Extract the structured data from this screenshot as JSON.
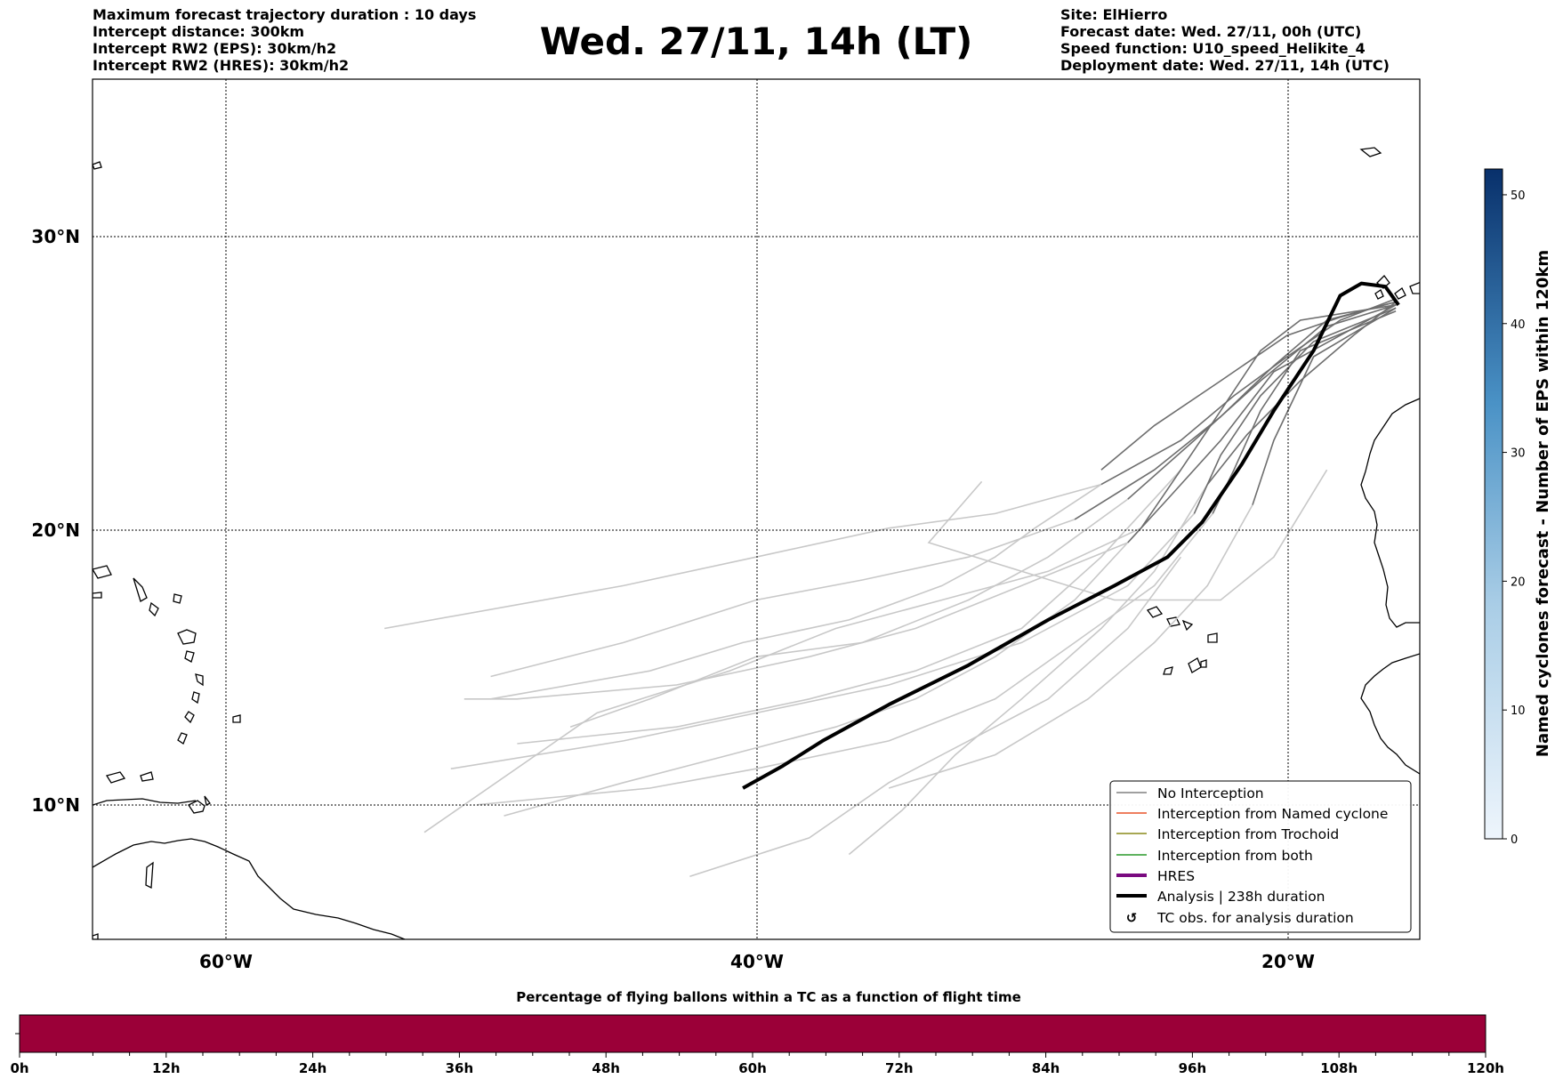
{
  "header": {
    "title": "Wed. 27/11, 14h (LT)",
    "left_lines": [
      "Maximum forecast trajectory duration : 10 days",
      "Intercept distance: 300km",
      "Intercept RW2 (EPS):  30km/h2",
      "Intercept RW2 (HRES): 30km/h2"
    ],
    "right_lines": [
      "Site: ElHierro",
      "Forecast date: Wed. 27/11, 00h (UTC)",
      "Speed function: U10_speed_Helikite_4",
      "Deployment date: Wed. 27/11, 14h (UTC)"
    ]
  },
  "map": {
    "lon_ticks": [
      "60°W",
      "40°W",
      "20°W"
    ],
    "lat_ticks": [
      "30°N",
      "20°N",
      "10°N"
    ],
    "lon_range": [
      -65,
      -15
    ],
    "lat_range": [
      5.3,
      34.6
    ],
    "grid": "dotted"
  },
  "legend": {
    "placement": "lower-right",
    "items": [
      {
        "label": "No Interception",
        "color": "#808080",
        "style": "thin"
      },
      {
        "label": "Interception from Named cyclone",
        "color": "#e8542a",
        "style": "thin"
      },
      {
        "label": "Interception from Trochoid",
        "color": "#8a8a1a",
        "style": "thin"
      },
      {
        "label": "Interception from both",
        "color": "#2a9a2a",
        "style": "thin"
      },
      {
        "label": "HRES",
        "color": "#7a0a80",
        "style": "thick"
      },
      {
        "label": "Analysis | 238h duration",
        "color": "#000000",
        "style": "thick"
      },
      {
        "label": "TC obs. for analysis duration",
        "color": "#000000",
        "style": "symbol"
      }
    ]
  },
  "colorbar": {
    "label": "Named cyclones forecast - Number of EPS within 120km",
    "ticks": [
      "0",
      "10",
      "20",
      "30",
      "40",
      "50"
    ],
    "range": [
      0,
      52
    ],
    "colors": [
      "#e8f1fb",
      "#08306b"
    ]
  },
  "timebar": {
    "title": "Percentage of flying ballons within a TC as a function of flight time",
    "ticks": [
      "0h",
      "12h",
      "24h",
      "36h",
      "48h",
      "60h",
      "72h",
      "84h",
      "96h",
      "108h",
      "120h"
    ],
    "fill_color": "#9b0038"
  },
  "chart_data": {
    "type": "line",
    "x_axis": "longitude",
    "y_axis": "latitude",
    "analysis_track": [
      [
        -15.8,
        27.5
      ],
      [
        -16.3,
        28.1
      ],
      [
        -17.2,
        28.2
      ],
      [
        -18.0,
        27.8
      ],
      [
        -19.0,
        26.0
      ],
      [
        -20.5,
        24.0
      ],
      [
        -21.7,
        22.2
      ],
      [
        -23.2,
        20.2
      ],
      [
        -24.5,
        19.0
      ],
      [
        -26.5,
        18.0
      ],
      [
        -29.0,
        16.8
      ],
      [
        -32.0,
        15.2
      ],
      [
        -35.0,
        13.8
      ],
      [
        -37.5,
        12.5
      ],
      [
        -39.0,
        11.6
      ],
      [
        -40.5,
        10.8
      ]
    ],
    "member_tracks_dark": [
      [
        [
          -15.9,
          27.7
        ],
        [
          -18.0,
          27.0
        ],
        [
          -20.0,
          25.8
        ],
        [
          -22.0,
          24.5
        ],
        [
          -24.0,
          23.0
        ],
        [
          -27.0,
          21.5
        ]
      ],
      [
        [
          -15.9,
          27.6
        ],
        [
          -18.5,
          27.0
        ],
        [
          -20.5,
          25.5
        ],
        [
          -22.5,
          23.8
        ],
        [
          -25.0,
          22.0
        ],
        [
          -28.0,
          20.3
        ]
      ],
      [
        [
          -15.9,
          27.5
        ],
        [
          -18.0,
          26.5
        ],
        [
          -20.5,
          25.3
        ],
        [
          -22.5,
          23.0
        ],
        [
          -24.5,
          21.0
        ],
        [
          -26.0,
          19.5
        ]
      ],
      [
        [
          -15.9,
          27.4
        ],
        [
          -19.0,
          26.3
        ],
        [
          -21.0,
          24.5
        ],
        [
          -22.5,
          22.5
        ],
        [
          -23.5,
          20.5
        ]
      ],
      [
        [
          -15.9,
          27.5
        ],
        [
          -18.5,
          26.8
        ],
        [
          -21.0,
          25.0
        ],
        [
          -23.5,
          23.0
        ],
        [
          -26.0,
          21.0
        ]
      ],
      [
        [
          -15.9,
          27.3
        ],
        [
          -19.5,
          26.0
        ],
        [
          -21.0,
          24.0
        ],
        [
          -22.0,
          22.0
        ],
        [
          -22.8,
          20.5
        ]
      ],
      [
        [
          -15.9,
          27.6
        ],
        [
          -18.0,
          27.1
        ],
        [
          -20.0,
          26.5
        ],
        [
          -22.5,
          25.0
        ],
        [
          -25.0,
          23.5
        ],
        [
          -27.0,
          22.0
        ]
      ],
      [
        [
          -15.9,
          27.4
        ],
        [
          -19.0,
          25.8
        ],
        [
          -20.5,
          23.0
        ],
        [
          -21.3,
          20.8
        ]
      ],
      [
        [
          -15.9,
          27.6
        ],
        [
          -17.5,
          26.5
        ],
        [
          -19.5,
          25.0
        ],
        [
          -21.5,
          23.2
        ],
        [
          -23.0,
          21.5
        ]
      ],
      [
        [
          -15.9,
          27.5
        ],
        [
          -19.5,
          27.0
        ],
        [
          -21.0,
          26.0
        ],
        [
          -22.5,
          24.0
        ],
        [
          -24.0,
          22.0
        ],
        [
          -25.5,
          20.0
        ]
      ]
    ],
    "member_tracks_light": [
      [
        [
          -27.0,
          21.5
        ],
        [
          -31.0,
          20.5
        ],
        [
          -35.0,
          20.0
        ],
        [
          -40.0,
          19.0
        ],
        [
          -45.0,
          18.0
        ],
        [
          -54.0,
          16.5
        ]
      ],
      [
        [
          -28.0,
          20.3
        ],
        [
          -32.0,
          19.0
        ],
        [
          -36.0,
          18.2
        ],
        [
          -40.0,
          17.5
        ],
        [
          -45.0,
          16.0
        ],
        [
          -50.0,
          14.8
        ]
      ],
      [
        [
          -26.0,
          19.5
        ],
        [
          -30.0,
          18.0
        ],
        [
          -34.0,
          16.5
        ],
        [
          -38.0,
          15.5
        ],
        [
          -43.0,
          14.5
        ],
        [
          -49.0,
          14.0
        ],
        [
          -51.0,
          14.0
        ]
      ],
      [
        [
          -23.5,
          20.5
        ],
        [
          -26.0,
          18.0
        ],
        [
          -30.0,
          16.0
        ],
        [
          -35.0,
          14.5
        ],
        [
          -40.0,
          13.5
        ],
        [
          -45.0,
          12.5
        ],
        [
          -51.5,
          11.5
        ]
      ],
      [
        [
          -26.0,
          21.0
        ],
        [
          -29.0,
          19.0
        ],
        [
          -32.0,
          17.5
        ],
        [
          -36.0,
          16.0
        ],
        [
          -40.0,
          15.5
        ],
        [
          -44.0,
          14.0
        ],
        [
          -47.0,
          13.0
        ]
      ],
      [
        [
          -22.8,
          20.5
        ],
        [
          -25.0,
          18.0
        ],
        [
          -28.0,
          16.0
        ],
        [
          -31.0,
          14.0
        ],
        [
          -35.0,
          12.5
        ],
        [
          -40.0,
          11.5
        ],
        [
          -44.0,
          10.8
        ],
        [
          -50.5,
          10.2
        ]
      ],
      [
        [
          -25.5,
          20.0
        ],
        [
          -28.0,
          17.5
        ],
        [
          -31.0,
          15.5
        ],
        [
          -34.0,
          14.0
        ],
        [
          -37.0,
          13.0
        ],
        [
          -41.0,
          12.0
        ],
        [
          -45.0,
          11.0
        ],
        [
          -49.5,
          9.8
        ]
      ],
      [
        [
          -21.3,
          20.8
        ],
        [
          -23.0,
          18.0
        ],
        [
          -25.0,
          16.0
        ],
        [
          -27.5,
          14.0
        ],
        [
          -31.0,
          12.0
        ],
        [
          -35.0,
          10.8
        ]
      ],
      [
        [
          -23.0,
          21.5
        ],
        [
          -25.0,
          18.5
        ],
        [
          -27.0,
          16.5
        ],
        [
          -30.0,
          14.0
        ],
        [
          -32.5,
          12.0
        ],
        [
          -34.5,
          10.0
        ],
        [
          -36.5,
          8.4
        ]
      ],
      [
        [
          -24.0,
          19.0
        ],
        [
          -26.0,
          16.5
        ],
        [
          -29.0,
          14.0
        ],
        [
          -32.0,
          12.5
        ],
        [
          -35.0,
          11.0
        ],
        [
          -38.0,
          9.0
        ],
        [
          -42.5,
          7.6
        ]
      ],
      [
        [
          -27.0,
          21.5
        ],
        [
          -29.5,
          20.0
        ],
        [
          -31.0,
          19.0
        ],
        [
          -33.0,
          18.0
        ],
        [
          -36.5,
          16.8
        ],
        [
          -40.5,
          16.0
        ],
        [
          -44.0,
          15.0
        ],
        [
          -50.0,
          14.0
        ]
      ],
      [
        [
          -25.5,
          20.0
        ],
        [
          -29.0,
          18.5
        ],
        [
          -33.0,
          17.5
        ],
        [
          -37.0,
          16.5
        ],
        [
          -41.0,
          15.0
        ],
        [
          -46.0,
          13.5
        ],
        [
          -52.5,
          9.2
        ]
      ],
      [
        [
          -31.5,
          21.6
        ],
        [
          -33.5,
          19.5
        ],
        [
          -26.5,
          17.5
        ],
        [
          -22.5,
          17.5
        ],
        [
          -20.5,
          19.0
        ],
        [
          -18.5,
          22.0
        ]
      ],
      [
        [
          -24.0,
          22.0
        ],
        [
          -27.0,
          19.0
        ],
        [
          -30.0,
          16.5
        ],
        [
          -34.0,
          15.0
        ],
        [
          -38.0,
          14.0
        ],
        [
          -43.0,
          13.0
        ],
        [
          -49.0,
          12.4
        ]
      ]
    ]
  }
}
